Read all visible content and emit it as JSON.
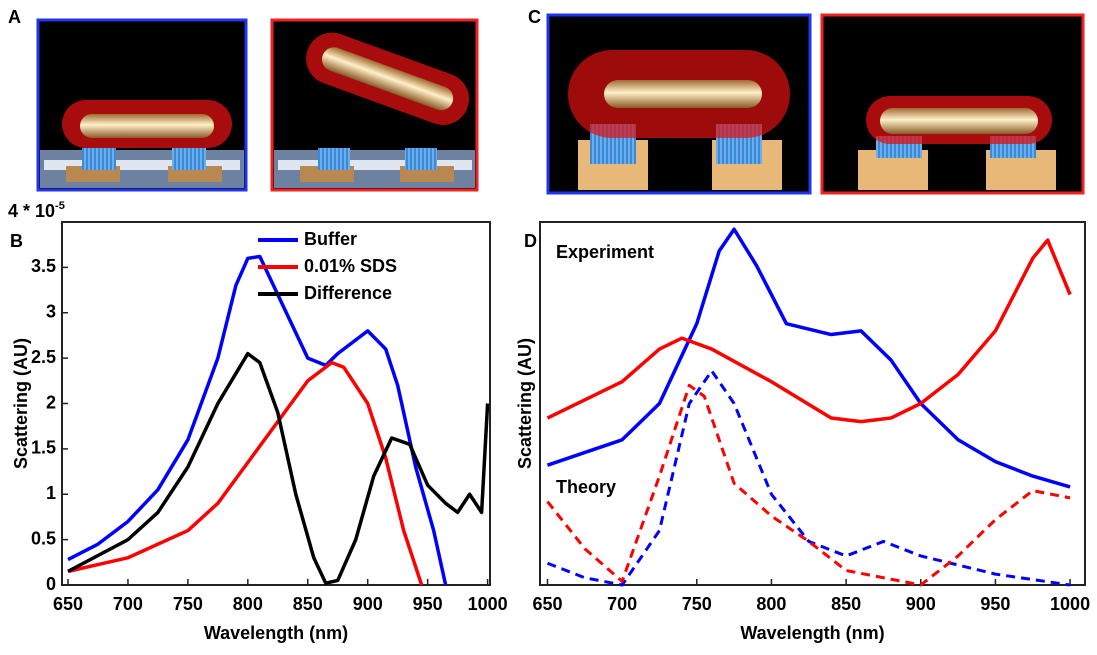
{
  "illustration_labels": [
    "A",
    "C"
  ],
  "chart_data": [
    {
      "type": "line",
      "panel": "B",
      "axis_multiplier": "4 * 10",
      "axis_multiplier_exp": "-5",
      "xlabel": "Wavelength (nm)",
      "ylabel": "Scattering (AU)",
      "xlim": [
        645,
        1002
      ],
      "ylim": [
        0,
        4
      ],
      "xticks": [
        650,
        700,
        750,
        800,
        850,
        900,
        950,
        1000
      ],
      "yticks": [
        0,
        0.5,
        1,
        1.5,
        2,
        2.5,
        3,
        3.5
      ],
      "series": [
        {
          "name": "Buffer",
          "color": "#0000ff",
          "x": [
            650,
            675,
            700,
            725,
            750,
            775,
            790,
            800,
            810,
            825,
            850,
            865,
            875,
            900,
            915,
            925,
            940,
            955,
            965
          ],
          "values": [
            0.28,
            0.45,
            0.7,
            1.05,
            1.6,
            2.5,
            3.3,
            3.6,
            3.62,
            3.2,
            2.5,
            2.42,
            2.55,
            2.8,
            2.6,
            2.2,
            1.3,
            0.6,
            0
          ]
        },
        {
          "name": "0.01% SDS",
          "color": "#ff0000",
          "x": [
            650,
            700,
            750,
            775,
            800,
            825,
            850,
            870,
            880,
            900,
            915,
            930,
            945
          ],
          "values": [
            0.15,
            0.3,
            0.6,
            0.9,
            1.35,
            1.8,
            2.25,
            2.45,
            2.4,
            2.0,
            1.4,
            0.6,
            0
          ]
        },
        {
          "name": "Difference",
          "color": "#000000",
          "x": [
            650,
            700,
            725,
            750,
            775,
            800,
            810,
            825,
            840,
            855,
            865,
            875,
            890,
            905,
            920,
            935,
            950,
            965,
            975,
            985,
            995,
            1000
          ],
          "values": [
            0.15,
            0.5,
            0.8,
            1.3,
            2.0,
            2.55,
            2.45,
            1.9,
            1.0,
            0.3,
            0.02,
            0.05,
            0.5,
            1.2,
            1.62,
            1.55,
            1.1,
            0.9,
            0.8,
            1.0,
            0.8,
            2.0
          ]
        }
      ]
    },
    {
      "type": "line",
      "panel": "D",
      "xlabel": "Wavelength (nm)",
      "ylabel": "Scattering (AU)",
      "annotations": [
        "Experiment",
        "Theory"
      ],
      "xlim": [
        645,
        1010
      ],
      "ylim": [
        0,
        100
      ],
      "xticks": [
        650,
        700,
        750,
        800,
        850,
        900,
        950,
        1000
      ],
      "series": [
        {
          "color": "#0000ff",
          "dashed": false,
          "x": [
            650,
            700,
            725,
            750,
            765,
            775,
            790,
            810,
            840,
            860,
            880,
            900,
            925,
            950,
            975,
            1000
          ],
          "values": [
            33,
            40,
            50,
            72,
            92,
            98,
            88,
            72,
            69,
            70,
            62,
            50,
            40,
            34,
            30,
            27
          ]
        },
        {
          "color": "#ff0000",
          "dashed": false,
          "x": [
            650,
            700,
            725,
            740,
            760,
            800,
            840,
            860,
            880,
            900,
            925,
            950,
            975,
            985,
            1000
          ],
          "values": [
            46,
            56,
            65,
            68,
            65,
            56,
            46,
            45,
            46,
            50,
            58,
            70,
            90,
            95,
            80
          ]
        },
        {
          "color": "#0000ff",
          "dashed": true,
          "x": [
            650,
            675,
            700,
            725,
            745,
            760,
            775,
            800,
            825,
            850,
            875,
            900,
            950,
            1000
          ],
          "values": [
            6,
            2,
            0,
            15,
            50,
            59,
            50,
            25,
            12,
            8,
            12,
            8,
            3,
            0
          ]
        },
        {
          "color": "#ff0000",
          "dashed": true,
          "x": [
            650,
            675,
            700,
            725,
            745,
            755,
            775,
            800,
            825,
            850,
            900,
            925,
            950,
            975,
            1000
          ],
          "values": [
            23,
            10,
            1,
            30,
            55,
            52,
            28,
            19,
            12,
            4,
            0,
            8,
            18,
            26,
            24
          ]
        }
      ]
    }
  ]
}
